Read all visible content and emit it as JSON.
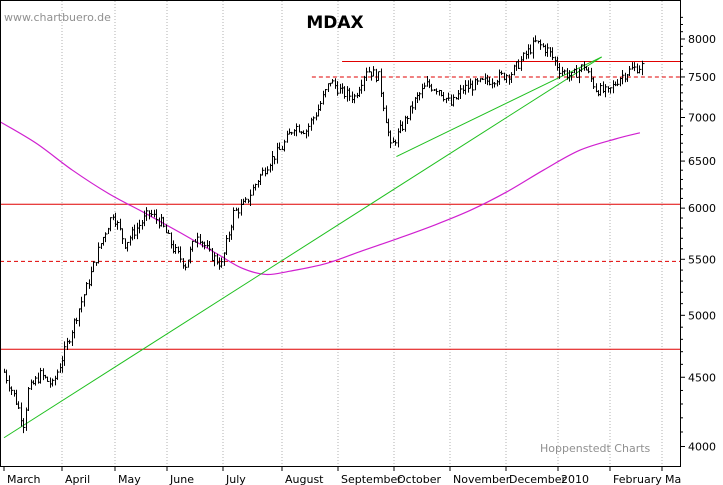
{
  "chart_data": {
    "type": "line",
    "title": "MDAX",
    "source_label": "www.chartbuero.de",
    "credit": "Hoppenstedt Charts",
    "y_axis": {
      "side": "right",
      "scale": "log",
      "ticks": [
        "4000",
        "4500",
        "5000",
        "5500",
        "6000",
        "6500",
        "7000",
        "7500",
        "8000"
      ],
      "range": [
        3950,
        8400
      ]
    },
    "x_axis": {
      "months": [
        "March",
        "April",
        "May",
        "June",
        "July",
        "August",
        "September",
        "October",
        "November",
        "December",
        "2010",
        "February",
        "Ma"
      ],
      "range_weeks": [
        0,
        54
      ]
    },
    "grid": "vertical-dotted",
    "colors": {
      "price": "#000000",
      "moving_average": "#d020d0",
      "trendline": "#20c020",
      "resistance": "#e00000",
      "background": "#ffffff"
    },
    "price_series": {
      "name": "",
      "x_weeks": [
        0,
        1,
        1.6,
        2,
        3,
        4,
        5,
        6,
        7,
        8,
        9,
        10,
        11,
        12,
        13,
        14,
        15,
        16,
        17,
        18,
        19,
        20,
        21,
        22,
        23,
        24,
        25,
        26,
        27,
        28,
        29,
        30,
        31,
        32,
        33,
        34,
        35,
        36,
        37,
        38,
        39,
        40,
        41,
        42,
        43,
        44,
        45,
        46,
        47,
        48,
        49,
        50,
        51,
        52,
        53
      ],
      "close": [
        4540,
        4320,
        4160,
        4400,
        4520,
        4440,
        4700,
        5000,
        5300,
        5650,
        5950,
        5650,
        5800,
        5950,
        5850,
        5600,
        5450,
        5750,
        5550,
        5450,
        5950,
        6050,
        6300,
        6500,
        6650,
        6900,
        6850,
        7100,
        7450,
        7300,
        7250,
        7600,
        7500,
        6650,
        6900,
        7200,
        7400,
        7350,
        7150,
        7350,
        7400,
        7450,
        7500,
        7550,
        7750,
        7950,
        7850,
        7600,
        7500,
        7650,
        7350,
        7300,
        7500,
        7600,
        7650
      ]
    },
    "moving_average": {
      "name": "",
      "x_weeks": [
        0,
        3,
        6,
        9,
        12,
        15,
        18,
        20,
        22,
        24,
        27,
        30,
        33,
        36,
        39,
        42,
        45,
        48,
        51,
        53
      ],
      "values": [
        6950,
        6700,
        6400,
        6150,
        5950,
        5750,
        5550,
        5420,
        5360,
        5390,
        5460,
        5580,
        5700,
        5830,
        5980,
        6170,
        6400,
        6620,
        6750,
        6820
      ]
    },
    "trendlines": [
      {
        "x_weeks": [
          0,
          49.5
        ],
        "values": [
          4060,
          7760
        ]
      },
      {
        "x_weeks": [
          32.5,
          49.5
        ],
        "values": [
          6550,
          7760
        ]
      }
    ],
    "horizontal_lines": [
      {
        "value": 7700,
        "style": "solid",
        "from_week": 28
      },
      {
        "value": 7500,
        "style": "dashed",
        "from_week": 25.5
      },
      {
        "value": 6040,
        "style": "solid",
        "from_week": 0
      },
      {
        "value": 5480,
        "style": "dashed",
        "from_week": 0
      },
      {
        "value": 4720,
        "style": "solid",
        "from_week": 0
      }
    ]
  }
}
